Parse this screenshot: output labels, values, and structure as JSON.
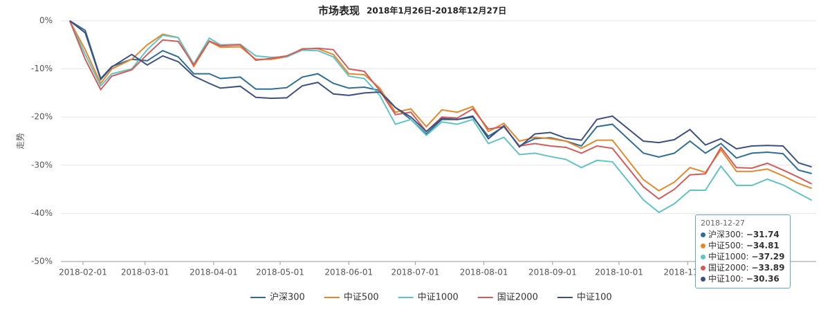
{
  "chart_data": {
    "type": "line",
    "title": "市场表现",
    "subtitle": "2018年1月26日-2018年12月27日",
    "y_label": "走势",
    "x": [
      "2018-01-26",
      "2018-02-02",
      "2018-02-09",
      "2018-02-14",
      "2018-02-23",
      "2018-03-02",
      "2018-03-09",
      "2018-03-16",
      "2018-03-23",
      "2018-03-30",
      "2018-04-04",
      "2018-04-13",
      "2018-04-20",
      "2018-04-27",
      "2018-05-04",
      "2018-05-11",
      "2018-05-18",
      "2018-05-25",
      "2018-06-01",
      "2018-06-08",
      "2018-06-15",
      "2018-06-22",
      "2018-06-29",
      "2018-07-06",
      "2018-07-13",
      "2018-07-20",
      "2018-07-27",
      "2018-08-03",
      "2018-08-10",
      "2018-08-17",
      "2018-08-24",
      "2018-08-31",
      "2018-09-07",
      "2018-09-14",
      "2018-09-21",
      "2018-09-28",
      "2018-10-12",
      "2018-10-19",
      "2018-10-26",
      "2018-11-02",
      "2018-11-09",
      "2018-11-16",
      "2018-11-23",
      "2018-11-30",
      "2018-12-07",
      "2018-12-14",
      "2018-12-21",
      "2018-12-27"
    ],
    "xlim": [
      "2018-01-22",
      "2018-12-29"
    ],
    "xticks": [
      "2018-02-01",
      "2018-03-01",
      "2018-04-01",
      "2018-05-01",
      "2018-06-01",
      "2018-07-01",
      "2018-08-01",
      "2018-09-01",
      "2018-10-01",
      "2018-11-01"
    ],
    "ylim": [
      -50,
      0
    ],
    "yticks": [
      {
        "value": 0,
        "label": "0%"
      },
      {
        "value": -10,
        "label": "-10%"
      },
      {
        "value": -20,
        "label": "-20%"
      },
      {
        "value": -30,
        "label": "-30%"
      },
      {
        "value": -40,
        "label": "-40%"
      },
      {
        "value": -50,
        "label": "-50%"
      }
    ],
    "grid": true,
    "legend": "bottom",
    "series": [
      {
        "name": "沪深300",
        "color": "#2e6e96",
        "values": [
          0,
          -2,
          -12,
          -9.5,
          -8,
          -8.3,
          -6.2,
          -7.5,
          -11,
          -11,
          -12,
          -11.7,
          -14.2,
          -14.2,
          -13.9,
          -11.7,
          -11,
          -13,
          -14,
          -13.8,
          -14.5,
          -18,
          -20.5,
          -23.5,
          -20.5,
          -20.5,
          -20,
          -24,
          -22,
          -26,
          -24.5,
          -24.3,
          -25,
          -26,
          -22,
          -21.5,
          -27.5,
          -28.3,
          -27.5,
          -25,
          -27.5,
          -25.5,
          -28.5,
          -27.5,
          -27.3,
          -27.6,
          -31,
          -31.74
        ]
      },
      {
        "name": "中证500",
        "color": "#e8862a",
        "values": [
          0,
          -6,
          -13,
          -10,
          -8,
          -5,
          -2.8,
          -3.5,
          -9.5,
          -4.3,
          -5.5,
          -5.4,
          -8,
          -8,
          -7.5,
          -5.8,
          -5.8,
          -7,
          -11,
          -11.2,
          -14,
          -19,
          -18.3,
          -22,
          -18.5,
          -19,
          -17.8,
          -23,
          -21.3,
          -25,
          -24.2,
          -24.5,
          -25,
          -26.5,
          -24.8,
          -24.8,
          -33,
          -35.3,
          -33.5,
          -30.5,
          -31.5,
          -26.8,
          -31.3,
          -31.3,
          -30.8,
          -32.2,
          -33.8,
          -34.81
        ]
      },
      {
        "name": "中证1000",
        "color": "#5fc4c4",
        "values": [
          0,
          -7,
          -13.5,
          -11,
          -10,
          -6,
          -3,
          -3.5,
          -9,
          -3.6,
          -5,
          -4.9,
          -7.3,
          -7.6,
          -7.5,
          -6.1,
          -6.2,
          -7.5,
          -11.5,
          -12,
          -15.5,
          -21.5,
          -20.5,
          -23.8,
          -21,
          -21.5,
          -20.5,
          -25.5,
          -24.2,
          -27.8,
          -27.5,
          -28.2,
          -28.8,
          -30.5,
          -29,
          -29.3,
          -37.2,
          -39.8,
          -38,
          -35.2,
          -35.2,
          -30.2,
          -34.2,
          -34.2,
          -32.9,
          -34.1,
          -35.8,
          -37.29
        ]
      },
      {
        "name": "国证2000",
        "color": "#d65a5a",
        "values": [
          0,
          -8,
          -14.3,
          -11.5,
          -10.2,
          -7,
          -4,
          -4.3,
          -9.2,
          -4.2,
          -5.2,
          -5,
          -8.2,
          -7.8,
          -7.3,
          -5.9,
          -5.7,
          -6,
          -10,
          -10.5,
          -14.5,
          -19.5,
          -19,
          -23,
          -20,
          -20.2,
          -18.3,
          -22.5,
          -22,
          -26,
          -25.5,
          -26,
          -26.3,
          -27.5,
          -26,
          -26.5,
          -34.5,
          -37,
          -35,
          -32,
          -31.8,
          -26.3,
          -30.5,
          -30.6,
          -29.6,
          -31,
          -32.5,
          -33.89
        ]
      },
      {
        "name": "中证100",
        "color": "#3b4f80",
        "values": [
          0,
          -2.5,
          -12.2,
          -9.6,
          -7,
          -9.2,
          -7.3,
          -8.5,
          -11.5,
          -13,
          -14,
          -13.6,
          -15.9,
          -16.1,
          -16,
          -13.5,
          -12.8,
          -15.2,
          -15.5,
          -15,
          -14.8,
          -18,
          -20,
          -23,
          -20.3,
          -20.5,
          -19.8,
          -24.5,
          -21.8,
          -26.2,
          -23.5,
          -23.2,
          -24.4,
          -24.8,
          -20.5,
          -19.8,
          -25,
          -25.3,
          -24.7,
          -22.6,
          -25.8,
          -24.5,
          -26.6,
          -26,
          -25.9,
          -26,
          -29.5,
          -30.36
        ]
      }
    ],
    "tooltip_labels": [
      "−31.74",
      "−34.81",
      "−37.29",
      "−33.89",
      "−30.36"
    ]
  }
}
